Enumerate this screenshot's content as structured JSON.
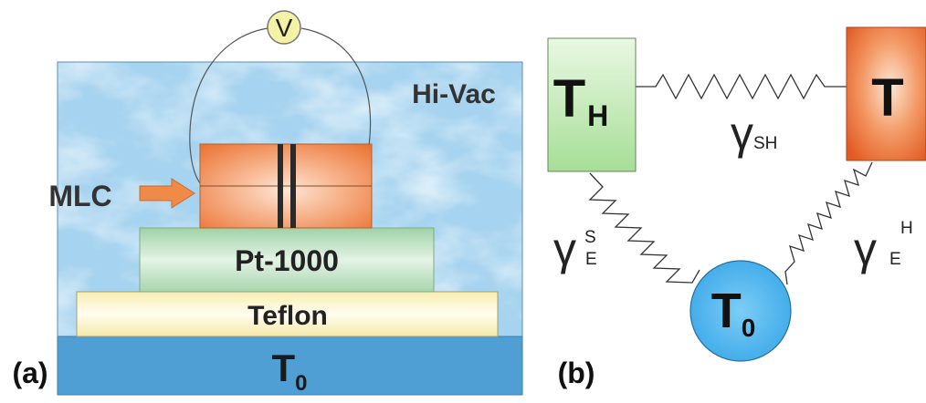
{
  "panel_a": {
    "label": "(a)",
    "environment_label": "Hi-Vac",
    "voltmeter_symbol": "V",
    "mlc_label": "MLC",
    "layers": {
      "sensor": "Pt-1000",
      "insulator": "Teflon",
      "base_symbol": "T",
      "base_subscript": "0"
    }
  },
  "panel_b": {
    "label": "(b)",
    "node_heater": {
      "symbol": "T",
      "subscript": "H"
    },
    "node_sample": {
      "symbol": "T"
    },
    "node_bath": {
      "symbol": "T",
      "subscript": "0"
    },
    "coupling_top": {
      "symbol": "γ",
      "subscript": "SH"
    },
    "coupling_left": {
      "symbol": "γ",
      "subscript": "E",
      "superscript": "S"
    },
    "coupling_right": {
      "symbol": "γ",
      "subscript": "E",
      "superscript": "H"
    }
  },
  "colors": {
    "vacuum_bg": "#a6d3ef",
    "base_blue": "#4f9fd4",
    "teflon": "#fbf5c4",
    "pt1000": "#c4e2c8",
    "mlc_orange": "#f0874a",
    "node_heater": "#b9e6ad",
    "node_sample": "#e8622e",
    "node_bath": "#49b2ec",
    "voltmeter": "#f3f2a6"
  }
}
